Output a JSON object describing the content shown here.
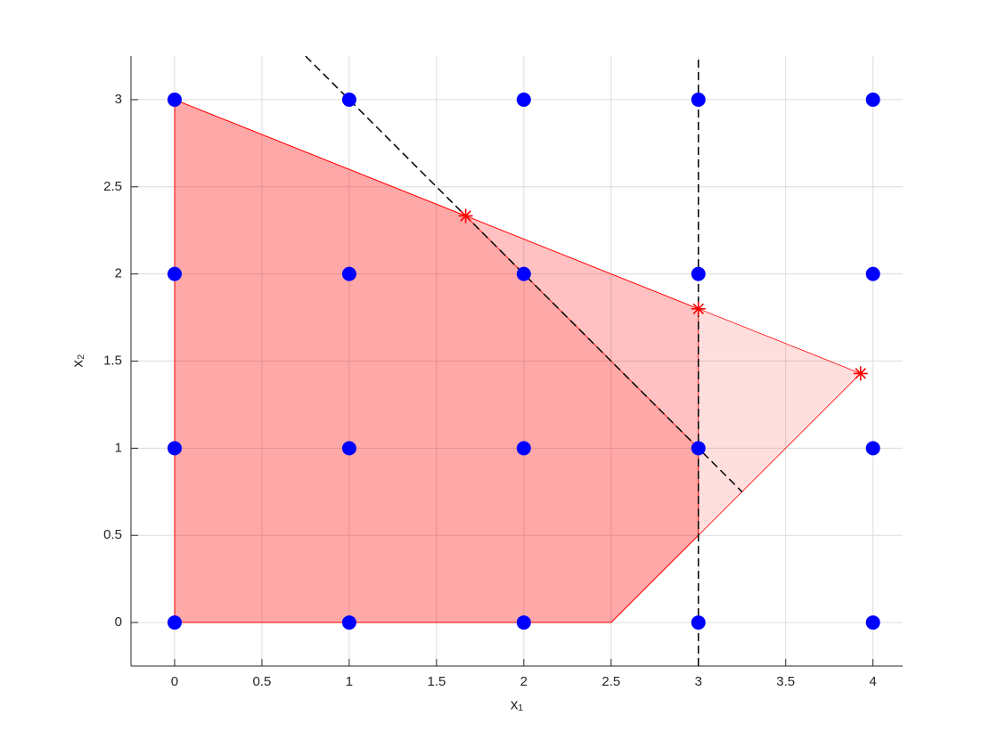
{
  "chart_data": {
    "type": "scatter",
    "xlabel": "x₁",
    "ylabel": "x₂",
    "xlim": [
      -0.25,
      4.17
    ],
    "ylim": [
      -0.25,
      3.25
    ],
    "xticks": [
      0,
      0.5,
      1,
      1.5,
      2,
      2.5,
      3,
      3.5,
      4
    ],
    "yticks": [
      0,
      0.5,
      1,
      1.5,
      2,
      2.5,
      3
    ],
    "grid": true,
    "regions": [
      {
        "color": "#ff0000",
        "x": [
          0,
          2.5,
          3.929,
          0
        ],
        "y": [
          0,
          0,
          1.429,
          3
        ]
      },
      {
        "color": "#ff0000",
        "x": [
          0,
          2.5,
          3,
          3,
          0
        ],
        "y": [
          0,
          0,
          0.5,
          1.8,
          3
        ]
      },
      {
        "color": "#ff0000",
        "x": [
          0,
          2.5,
          3,
          3,
          1.667,
          0
        ],
        "y": [
          0,
          0,
          0.5,
          1,
          2.333,
          3
        ]
      }
    ],
    "lines": [
      {
        "color": "#000000",
        "x": [
          0.75,
          3.25
        ],
        "y": [
          3.25,
          0.75
        ]
      },
      {
        "color": "#000000",
        "x": [
          3,
          3
        ],
        "y": [
          -0.25,
          3.25
        ]
      }
    ],
    "points": {
      "color": "#0000ff",
      "x": [
        0,
        1,
        2,
        3,
        4,
        0,
        1,
        2,
        3,
        4,
        0,
        1,
        2,
        3,
        4,
        0,
        1,
        2,
        3,
        4
      ],
      "y": [
        0,
        0,
        0,
        0,
        0,
        1,
        1,
        1,
        1,
        1,
        2,
        2,
        2,
        2,
        2,
        3,
        3,
        3,
        3,
        3
      ]
    },
    "stars": {
      "color": "#ff0000",
      "x": [
        1.667,
        3,
        3.929
      ],
      "y": [
        2.333,
        1.8,
        1.429
      ]
    }
  }
}
